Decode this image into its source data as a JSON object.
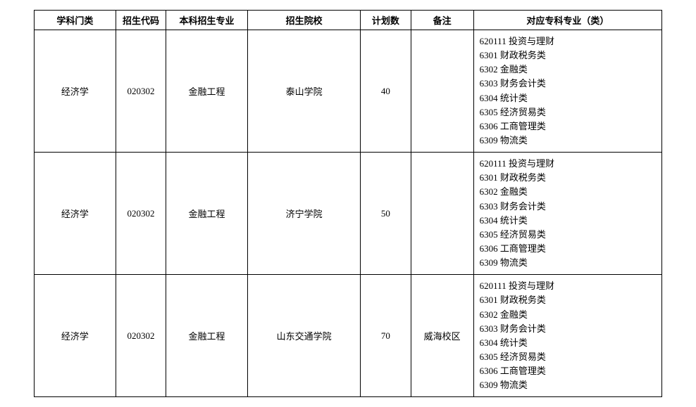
{
  "table": {
    "headers": {
      "subject": "学科门类",
      "code": "招生代码",
      "major": "本科招生专业",
      "school": "招生院校",
      "plan": "计划数",
      "remark": "备注",
      "corresponding": "对应专科专业（类）"
    },
    "rows": [
      {
        "subject": "经济学",
        "code": "020302",
        "major": "金融工程",
        "school": "泰山学院",
        "plan": "40",
        "remark": "",
        "corresponding": [
          "620111 投资与理财",
          "6301 财政税务类",
          "6302 金融类",
          "6303 财务会计类",
          "6304 统计类",
          "6305 经济贸易类",
          "6306 工商管理类",
          "6309 物流类"
        ]
      },
      {
        "subject": "经济学",
        "code": "020302",
        "major": "金融工程",
        "school": "济宁学院",
        "plan": "50",
        "remark": "",
        "corresponding": [
          "620111 投资与理财",
          "6301 财政税务类",
          "6302 金融类",
          "6303 财务会计类",
          "6304 统计类",
          "6305 经济贸易类",
          "6306 工商管理类",
          "6309 物流类"
        ]
      },
      {
        "subject": "经济学",
        "code": "020302",
        "major": "金融工程",
        "school": "山东交通学院",
        "plan": "70",
        "remark": "威海校区",
        "corresponding": [
          "620111 投资与理财",
          "6301 财政税务类",
          "6302 金融类",
          "6303 财务会计类",
          "6304 统计类",
          "6305 经济贸易类",
          "6306 工商管理类",
          "6309 物流类"
        ]
      }
    ]
  }
}
